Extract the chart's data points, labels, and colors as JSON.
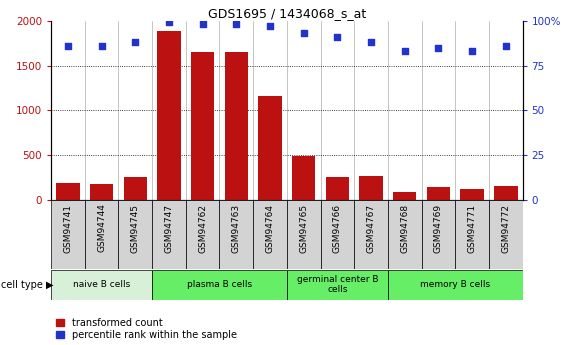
{
  "title": "GDS1695 / 1434068_s_at",
  "samples": [
    "GSM94741",
    "GSM94744",
    "GSM94745",
    "GSM94747",
    "GSM94762",
    "GSM94763",
    "GSM94764",
    "GSM94765",
    "GSM94766",
    "GSM94767",
    "GSM94768",
    "GSM94769",
    "GSM94771",
    "GSM94772"
  ],
  "transformed_count": [
    190,
    175,
    255,
    1880,
    1650,
    1650,
    1160,
    490,
    255,
    265,
    95,
    145,
    120,
    155
  ],
  "percentile_rank": [
    86,
    86,
    88,
    99,
    98,
    98,
    97,
    93,
    91,
    88,
    83,
    85,
    83,
    86
  ],
  "ylim_left": [
    0,
    2000
  ],
  "ylim_right": [
    0,
    100
  ],
  "yticks_left": [
    0,
    500,
    1000,
    1500,
    2000
  ],
  "yticks_right": [
    0,
    25,
    50,
    75,
    100
  ],
  "cell_groups": [
    {
      "label": "naive B cells",
      "start": 0,
      "end": 3,
      "color": "#d8f0d8"
    },
    {
      "label": "plasma B cells",
      "start": 3,
      "end": 7,
      "color": "#66ee66"
    },
    {
      "label": "germinal center B\ncells",
      "start": 7,
      "end": 10,
      "color": "#66ee66"
    },
    {
      "label": "memory B cells",
      "start": 10,
      "end": 14,
      "color": "#66ee66"
    }
  ],
  "sample_bg_color": "#d3d3d3",
  "bar_color": "#bb1111",
  "dot_color": "#2233cc",
  "legend_bar_label": "transformed count",
  "legend_dot_label": "percentile rank within the sample",
  "cell_type_label": "cell type"
}
